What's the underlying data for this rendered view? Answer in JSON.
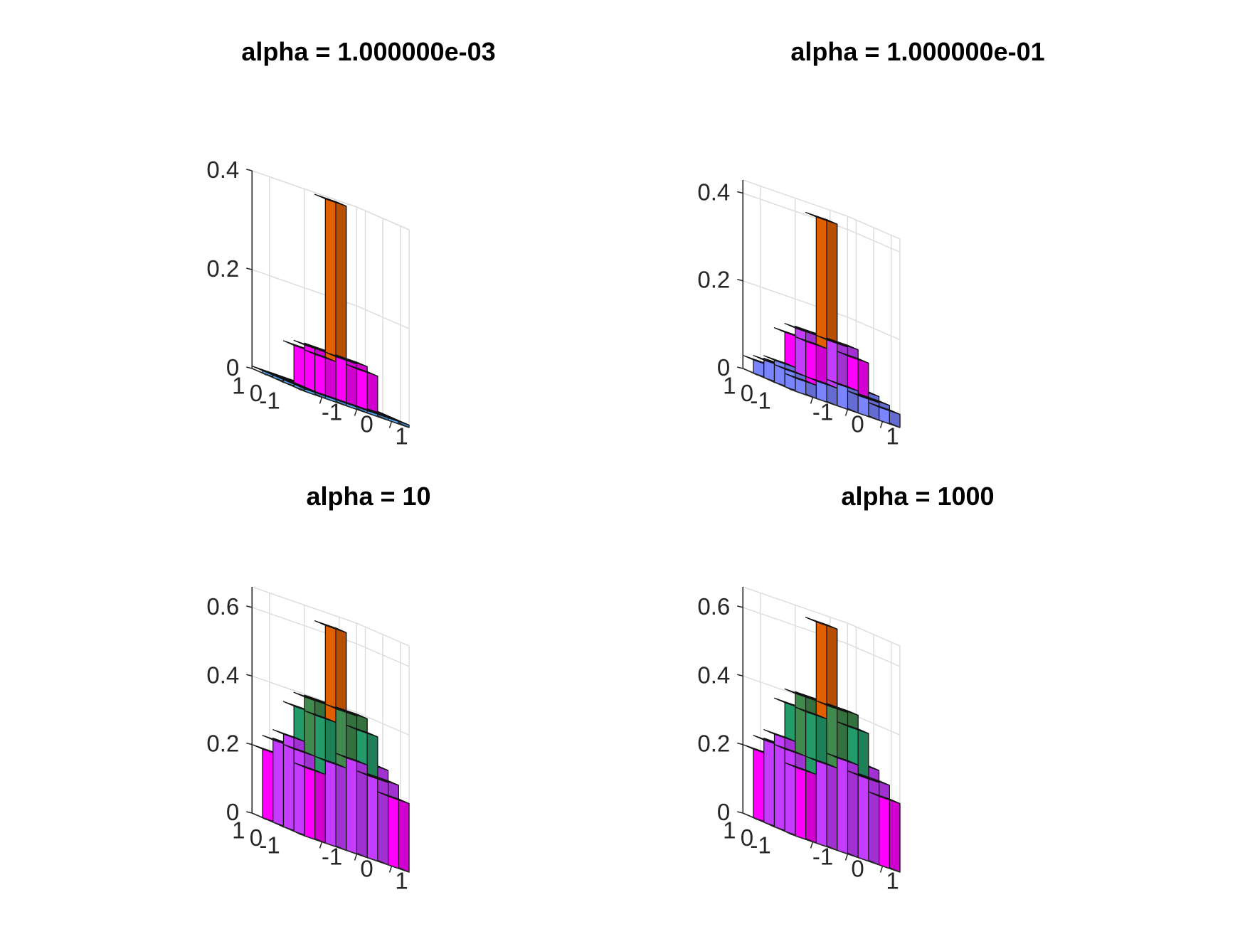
{
  "chart_data": [
    {
      "type": "bar3",
      "title": "alpha = 1.000000e-03",
      "x_ticks": [
        "-1",
        "0",
        "1"
      ],
      "y_ticks": [
        "-1",
        "0",
        "1"
      ],
      "z_ticks": [
        "0",
        "0.2",
        "0.4"
      ],
      "zlim": [
        0,
        0.4
      ],
      "grid": true,
      "values": [
        [
          0.005,
          0.005,
          0.005,
          0.005,
          0.005
        ],
        [
          0.005,
          0.08,
          0.09,
          0.08,
          0.005
        ],
        [
          0.005,
          0.09,
          0.4,
          0.09,
          0.005
        ],
        [
          0.005,
          0.08,
          0.09,
          0.08,
          0.005
        ],
        [
          0.005,
          0.005,
          0.005,
          0.005,
          0.005
        ]
      ]
    },
    {
      "type": "bar3",
      "title": "alpha = 1.000000e-01",
      "x_ticks": [
        "-1",
        "0",
        "1"
      ],
      "y_ticks": [
        "-1",
        "0",
        "1"
      ],
      "z_ticks": [
        "0",
        "0.2",
        "0.4"
      ],
      "zlim": [
        0,
        0.43
      ],
      "grid": true,
      "values": [
        [
          0.03,
          0.04,
          0.05,
          0.04,
          0.03
        ],
        [
          0.04,
          0.12,
          0.14,
          0.12,
          0.04
        ],
        [
          0.05,
          0.14,
          0.41,
          0.14,
          0.05
        ],
        [
          0.04,
          0.12,
          0.14,
          0.12,
          0.04
        ],
        [
          0.03,
          0.04,
          0.05,
          0.04,
          0.03
        ]
      ]
    },
    {
      "type": "bar3",
      "title": "alpha = 10",
      "x_ticks": [
        "-1",
        "0",
        "1"
      ],
      "y_ticks": [
        "-1",
        "0",
        "1"
      ],
      "z_ticks": [
        "0",
        "0.2",
        "0.4",
        "0.6"
      ],
      "zlim": [
        0,
        0.66
      ],
      "grid": true,
      "values": [
        [
          0.2,
          0.24,
          0.27,
          0.24,
          0.2
        ],
        [
          0.24,
          0.36,
          0.4,
          0.36,
          0.24
        ],
        [
          0.27,
          0.4,
          0.63,
          0.4,
          0.27
        ],
        [
          0.24,
          0.36,
          0.4,
          0.36,
          0.24
        ],
        [
          0.2,
          0.24,
          0.27,
          0.24,
          0.2
        ]
      ]
    },
    {
      "type": "bar3",
      "title": "alpha = 1000",
      "x_ticks": [
        "-1",
        "0",
        "1"
      ],
      "y_ticks": [
        "-1",
        "0",
        "1"
      ],
      "z_ticks": [
        "0",
        "0.2",
        "0.4",
        "0.6"
      ],
      "zlim": [
        0,
        0.66
      ],
      "grid": true,
      "values": [
        [
          0.2,
          0.24,
          0.27,
          0.24,
          0.2
        ],
        [
          0.24,
          0.37,
          0.41,
          0.37,
          0.24
        ],
        [
          0.27,
          0.41,
          0.64,
          0.41,
          0.27
        ],
        [
          0.24,
          0.37,
          0.41,
          0.37,
          0.24
        ],
        [
          0.2,
          0.24,
          0.27,
          0.24,
          0.2
        ]
      ]
    }
  ],
  "style": {
    "axis_color": "#262626",
    "grid_color": "#dedede",
    "edge_color": "#111111",
    "colormap": [
      "#4fa8f7",
      "#7a84ff",
      "#ff00ff",
      "#c43cff",
      "#239c6a",
      "#3f8a4c",
      "#5f8a3a",
      "#807228",
      "#e06000"
    ]
  }
}
